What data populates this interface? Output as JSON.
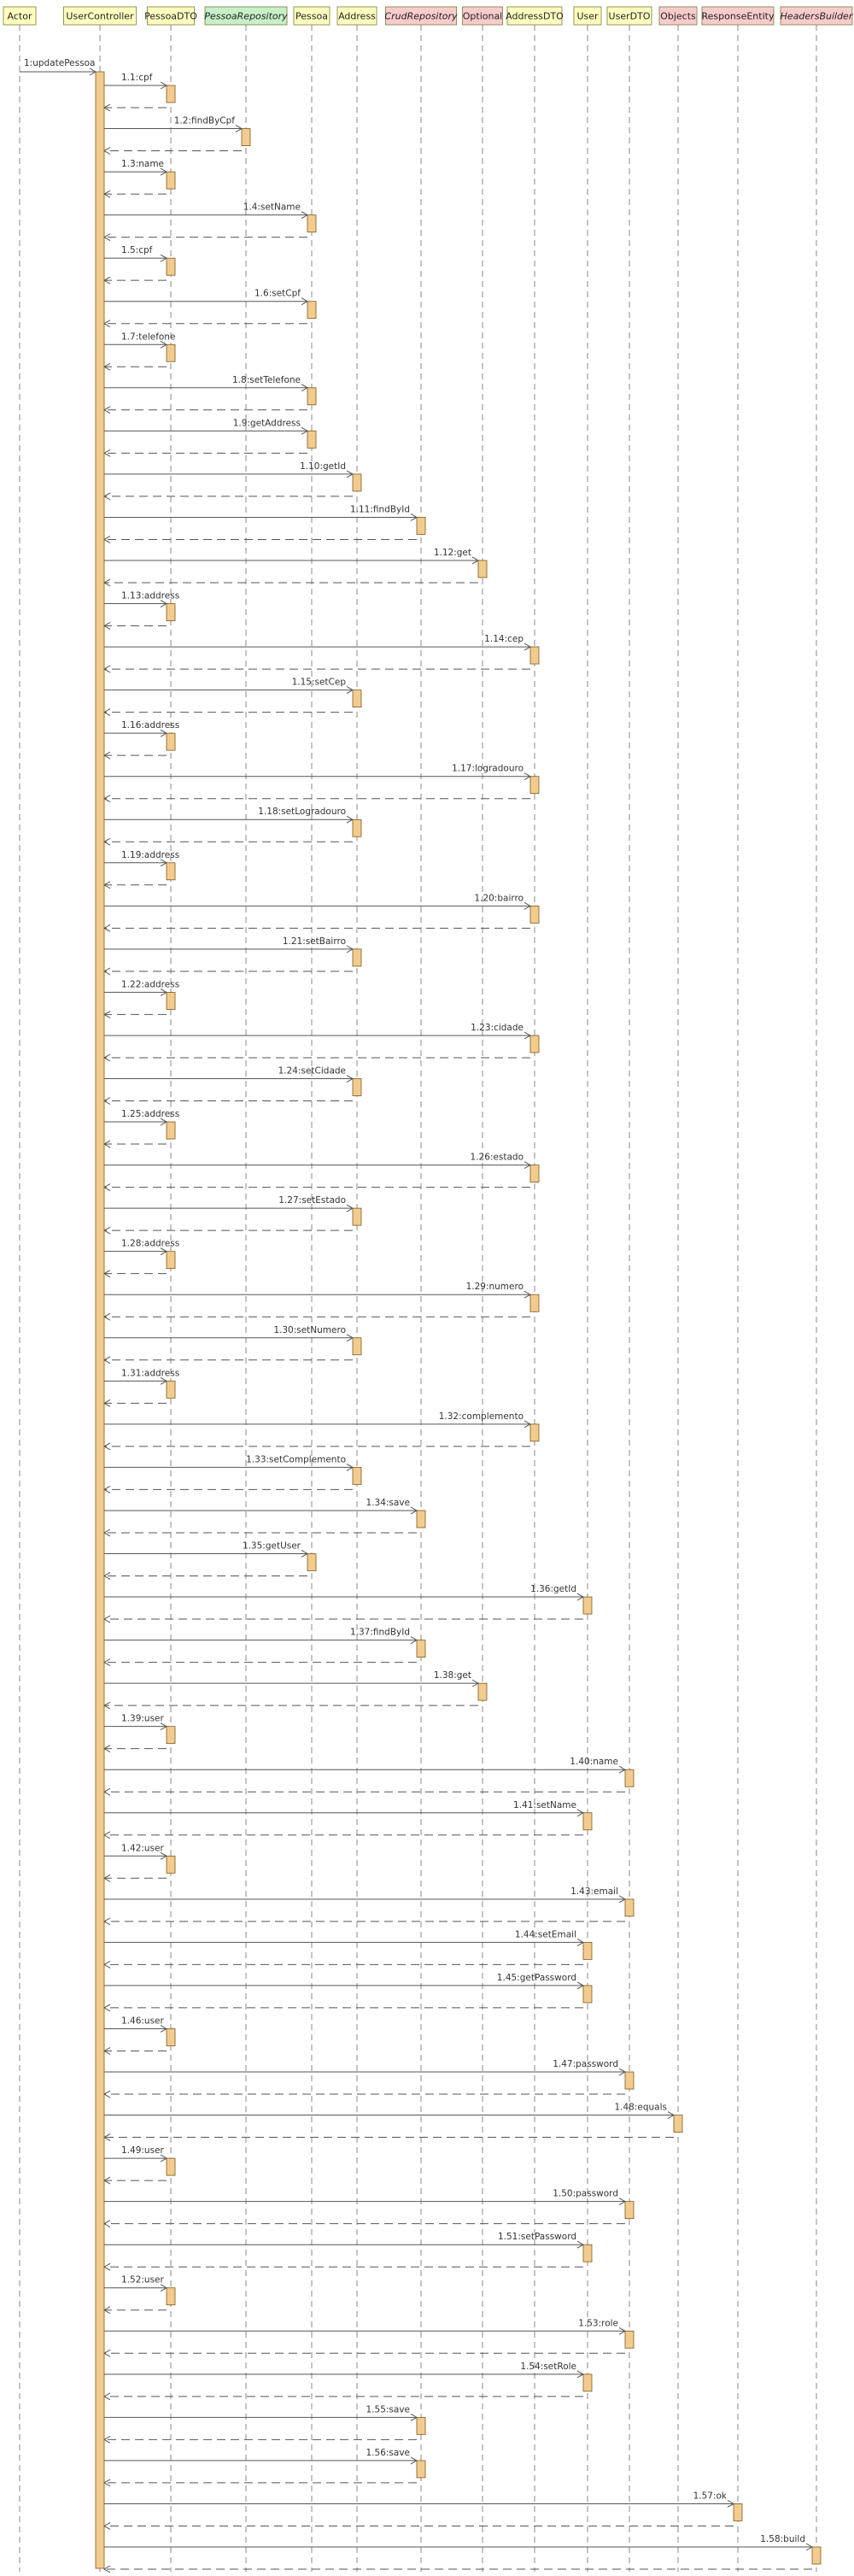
{
  "colors": {
    "participant_default": "#ffffc0",
    "participant_interface": "#c8f0c8",
    "participant_library": "#f8cccc",
    "participant_border": "#7a7a3a",
    "activation": "#f2cc8f",
    "activation_border": "#7a5a20",
    "lifeline": "#888888",
    "message": "#555555"
  },
  "participants": [
    {
      "name": "Actor",
      "kind": "default"
    },
    {
      "name": "UserController",
      "kind": "default"
    },
    {
      "name": "PessoaDTO",
      "kind": "default"
    },
    {
      "name": "PessoaRepository",
      "kind": "interface"
    },
    {
      "name": "Pessoa",
      "kind": "default"
    },
    {
      "name": "Address",
      "kind": "default"
    },
    {
      "name": "CrudRepository",
      "kind": "library-italic"
    },
    {
      "name": "Optional",
      "kind": "library"
    },
    {
      "name": "AddressDTO",
      "kind": "default"
    },
    {
      "name": "User",
      "kind": "default"
    },
    {
      "name": "UserDTO",
      "kind": "default"
    },
    {
      "name": "Objects",
      "kind": "library"
    },
    {
      "name": "ResponseEntity",
      "kind": "library"
    },
    {
      "name": "HeadersBuilder",
      "kind": "library-italic"
    }
  ],
  "messages": [
    {
      "label": "1:updatePessoa",
      "to": 1
    },
    {
      "label": "1.1:cpf",
      "to": 2
    },
    {
      "label": "1.2:findByCpf",
      "to": 3
    },
    {
      "label": "1.3:name",
      "to": 2
    },
    {
      "label": "1.4:setName",
      "to": 4
    },
    {
      "label": "1.5:cpf",
      "to": 2
    },
    {
      "label": "1.6:setCpf",
      "to": 4
    },
    {
      "label": "1.7:telefone",
      "to": 2
    },
    {
      "label": "1.8:setTelefone",
      "to": 4
    },
    {
      "label": "1.9:getAddress",
      "to": 4
    },
    {
      "label": "1.10:getId",
      "to": 5
    },
    {
      "label": "1.11:findById",
      "to": 6
    },
    {
      "label": "1.12:get",
      "to": 7
    },
    {
      "label": "1.13:address",
      "to": 2
    },
    {
      "label": "1.14:cep",
      "to": 8
    },
    {
      "label": "1.15:setCep",
      "to": 5
    },
    {
      "label": "1.16:address",
      "to": 2
    },
    {
      "label": "1.17:logradouro",
      "to": 8
    },
    {
      "label": "1.18:setLogradouro",
      "to": 5
    },
    {
      "label": "1.19:address",
      "to": 2
    },
    {
      "label": "1.20:bairro",
      "to": 8
    },
    {
      "label": "1.21:setBairro",
      "to": 5
    },
    {
      "label": "1.22:address",
      "to": 2
    },
    {
      "label": "1.23:cidade",
      "to": 8
    },
    {
      "label": "1.24:setCidade",
      "to": 5
    },
    {
      "label": "1.25:address",
      "to": 2
    },
    {
      "label": "1.26:estado",
      "to": 8
    },
    {
      "label": "1.27:setEstado",
      "to": 5
    },
    {
      "label": "1.28:address",
      "to": 2
    },
    {
      "label": "1.29:numero",
      "to": 8
    },
    {
      "label": "1.30:setNumero",
      "to": 5
    },
    {
      "label": "1.31:address",
      "to": 2
    },
    {
      "label": "1.32:complemento",
      "to": 8
    },
    {
      "label": "1.33:setComplemento",
      "to": 5
    },
    {
      "label": "1.34:save",
      "to": 6
    },
    {
      "label": "1.35:getUser",
      "to": 4
    },
    {
      "label": "1.36:getId",
      "to": 9
    },
    {
      "label": "1.37:findById",
      "to": 6
    },
    {
      "label": "1.38:get",
      "to": 7
    },
    {
      "label": "1.39:user",
      "to": 2
    },
    {
      "label": "1.40:name",
      "to": 10
    },
    {
      "label": "1.41:setName",
      "to": 9
    },
    {
      "label": "1.42:user",
      "to": 2
    },
    {
      "label": "1.43:email",
      "to": 10
    },
    {
      "label": "1.44:setEmail",
      "to": 9
    },
    {
      "label": "1.45:getPassword",
      "to": 9
    },
    {
      "label": "1.46:user",
      "to": 2
    },
    {
      "label": "1.47:password",
      "to": 10
    },
    {
      "label": "1.48:equals",
      "to": 11
    },
    {
      "label": "1.49:user",
      "to": 2
    },
    {
      "label": "1.50:password",
      "to": 10
    },
    {
      "label": "1.51:setPassword",
      "to": 9
    },
    {
      "label": "1.52:user",
      "to": 2
    },
    {
      "label": "1.53:role",
      "to": 10
    },
    {
      "label": "1.54:setRole",
      "to": 9
    },
    {
      "label": "1.55:save",
      "to": 6
    },
    {
      "label": "1.56:save",
      "to": 6
    },
    {
      "label": "1.57:ok",
      "to": 12
    },
    {
      "label": "1.58:build",
      "to": 13
    }
  ]
}
